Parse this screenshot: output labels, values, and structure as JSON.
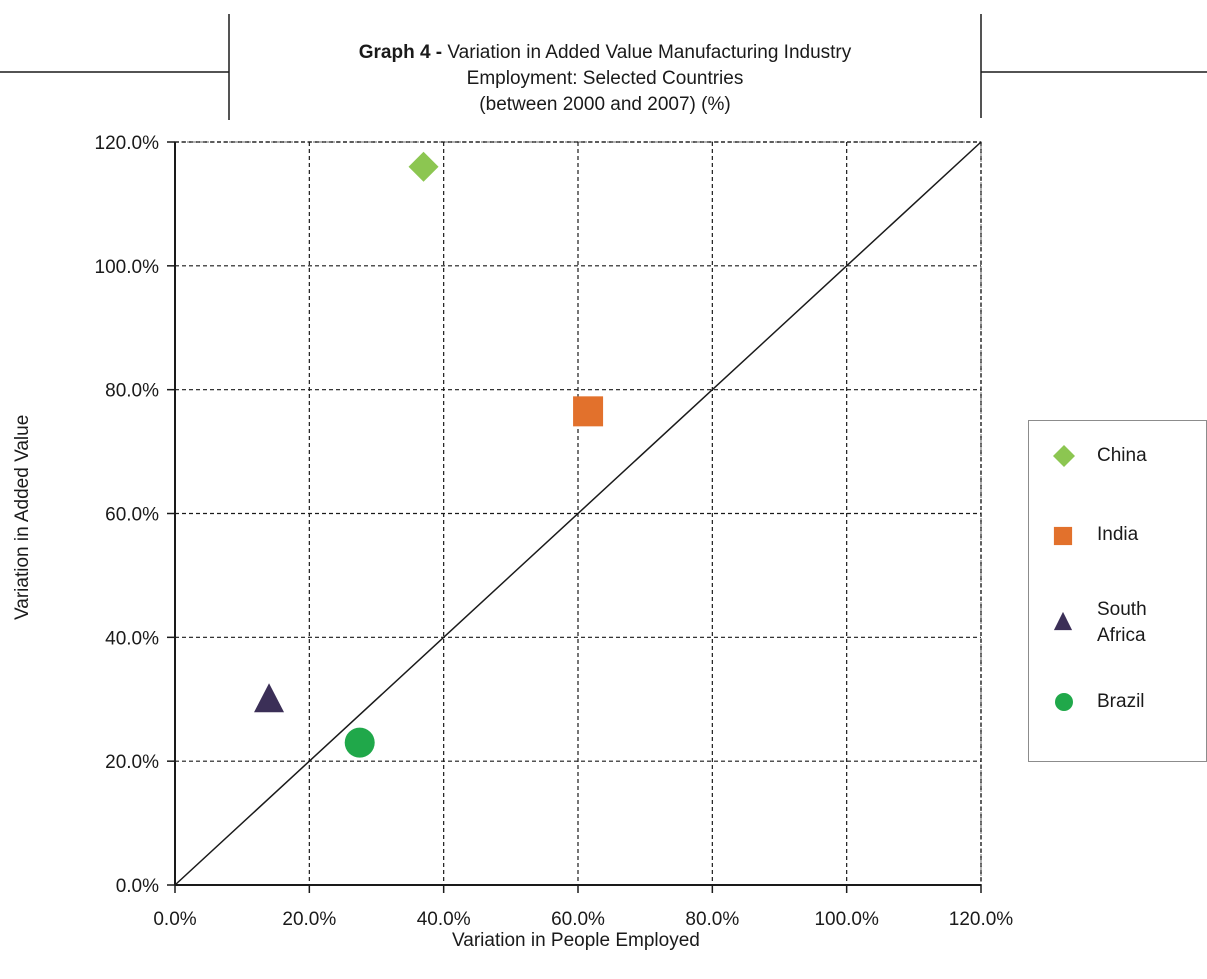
{
  "title": {
    "bold_prefix": "Graph 4 -",
    "line1_rest": "Variation in Added Value Manufacturing Industry",
    "line2": "Employment: Selected Countries",
    "line3": "(between 2000 and 2007) (%)"
  },
  "chart_data": {
    "type": "scatter",
    "title": "Graph 4 - Variation in Added Value Manufacturing Industry Employment: Selected Countries (between 2000 and 2007) (%)",
    "xlabel": "Variation in People Employed",
    "ylabel": "Variation in Added Value",
    "xlim": [
      0,
      120
    ],
    "ylim": [
      0,
      120
    ],
    "x_ticks": [
      0,
      20,
      40,
      60,
      80,
      100,
      120
    ],
    "y_ticks": [
      0,
      20,
      40,
      60,
      80,
      100,
      120
    ],
    "x_tick_labels": [
      "0.0%",
      "20.0%",
      "40.0%",
      "60.0%",
      "80.0%",
      "100.0%",
      "120.0%"
    ],
    "y_tick_labels": [
      "0.0%",
      "20.0%",
      "40.0%",
      "60.0%",
      "80.0%",
      "100.0%",
      "120.0%"
    ],
    "grid": true,
    "reference_line": {
      "from": [
        0,
        0
      ],
      "to": [
        120,
        120
      ]
    },
    "legend_position": "right",
    "series": [
      {
        "name": "China",
        "marker": "diamond",
        "color": "#8cc651",
        "x": 37,
        "y": 116
      },
      {
        "name": "India",
        "marker": "square",
        "color": "#e2712c",
        "x": 61.5,
        "y": 76.5
      },
      {
        "name": "South Africa",
        "marker": "triangle",
        "color": "#3b2f57",
        "x": 14,
        "y": 30
      },
      {
        "name": "Brazil",
        "marker": "circle",
        "color": "#20a84a",
        "x": 27.5,
        "y": 23
      }
    ]
  },
  "legend": {
    "items": [
      {
        "label": "China"
      },
      {
        "label": "India"
      },
      {
        "label": "South\nAfrica"
      },
      {
        "label": "Brazil"
      }
    ]
  }
}
